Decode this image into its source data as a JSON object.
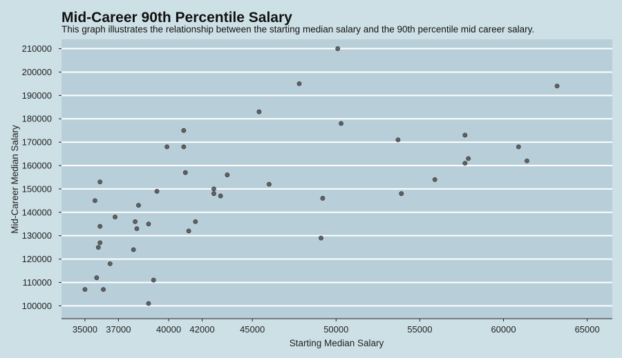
{
  "chart_data": {
    "type": "scatter",
    "title": "Mid-Career 90th Percentile Salary",
    "subtitle": "This graph illustrates the relationship between the starting median salary and the 90th percentile mid career salary.",
    "xlabel": "Starting Median Salary",
    "ylabel": "Mid-Career Median Salary",
    "xlim": [
      33600,
      66500
    ],
    "ylim": [
      94500,
      214000
    ],
    "x_ticks": [
      35000,
      37000,
      40000,
      42000,
      45000,
      50000,
      55000,
      60000,
      65000
    ],
    "y_ticks": [
      100000,
      110000,
      120000,
      130000,
      140000,
      150000,
      160000,
      170000,
      180000,
      190000,
      200000,
      210000
    ],
    "grid": "horizontal",
    "colors": {
      "background": "#cde0e6",
      "panel": "#b8cfd9",
      "gridline": "#ffffff",
      "point": "#4d4d4d"
    },
    "points": [
      {
        "x": 50100,
        "y": 210000
      },
      {
        "x": 47800,
        "y": 195000
      },
      {
        "x": 63200,
        "y": 194000
      },
      {
        "x": 45400,
        "y": 183000
      },
      {
        "x": 50300,
        "y": 178000
      },
      {
        "x": 40900,
        "y": 175000
      },
      {
        "x": 57700,
        "y": 173000
      },
      {
        "x": 53700,
        "y": 171000
      },
      {
        "x": 39900,
        "y": 168000
      },
      {
        "x": 40900,
        "y": 168000
      },
      {
        "x": 60900,
        "y": 168000
      },
      {
        "x": 57900,
        "y": 163000
      },
      {
        "x": 61400,
        "y": 162000
      },
      {
        "x": 57700,
        "y": 161000
      },
      {
        "x": 41000,
        "y": 157000
      },
      {
        "x": 43500,
        "y": 156000
      },
      {
        "x": 55900,
        "y": 154000
      },
      {
        "x": 35900,
        "y": 153000
      },
      {
        "x": 46000,
        "y": 152000
      },
      {
        "x": 42700,
        "y": 150000
      },
      {
        "x": 39300,
        "y": 149000
      },
      {
        "x": 42700,
        "y": 148000
      },
      {
        "x": 53900,
        "y": 148000
      },
      {
        "x": 43100,
        "y": 147000
      },
      {
        "x": 49200,
        "y": 146000
      },
      {
        "x": 35600,
        "y": 145000
      },
      {
        "x": 38200,
        "y": 143000
      },
      {
        "x": 36800,
        "y": 138000
      },
      {
        "x": 38000,
        "y": 136000
      },
      {
        "x": 41600,
        "y": 136000
      },
      {
        "x": 38800,
        "y": 135000
      },
      {
        "x": 35900,
        "y": 134000
      },
      {
        "x": 38100,
        "y": 133000
      },
      {
        "x": 41200,
        "y": 132000
      },
      {
        "x": 49100,
        "y": 129000
      },
      {
        "x": 35900,
        "y": 127000
      },
      {
        "x": 35800,
        "y": 125000
      },
      {
        "x": 37900,
        "y": 124000
      },
      {
        "x": 36500,
        "y": 118000
      },
      {
        "x": 35700,
        "y": 112000
      },
      {
        "x": 39100,
        "y": 111000
      },
      {
        "x": 35000,
        "y": 107000
      },
      {
        "x": 36100,
        "y": 107000
      },
      {
        "x": 38800,
        "y": 101000
      }
    ]
  }
}
